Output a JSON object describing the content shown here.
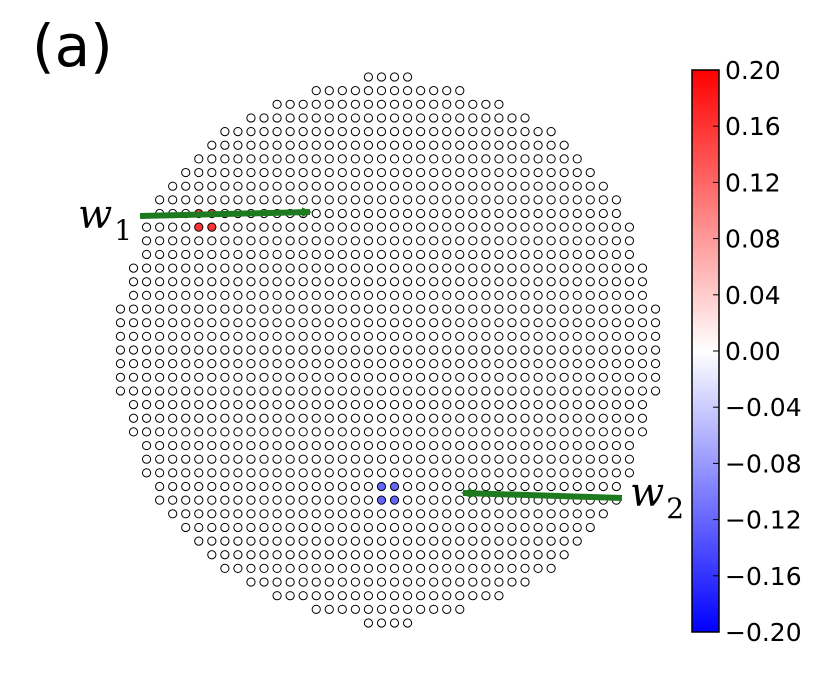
{
  "panel_label": "(a)",
  "annotations": {
    "w1": {
      "base": "w",
      "sub": "1"
    },
    "w2": {
      "base": "w",
      "sub": "2"
    },
    "arrow_color": "#1e7a1e"
  },
  "colorbar": {
    "min": -0.2,
    "max": 0.2,
    "colormap": "bwr",
    "colors": {
      "low": "#0000ff",
      "mid": "#ffffff",
      "high": "#ff0000"
    },
    "ticks": [
      "0.20",
      "0.16",
      "0.12",
      "0.08",
      "0.04",
      "0.00",
      "−0.04",
      "−0.08",
      "−0.12",
      "−0.16",
      "−0.20"
    ]
  },
  "chart_data": {
    "type": "scatter",
    "description_type": "circular lattice of sites colored by value",
    "lattice": {
      "rows": 41,
      "center_row": 20,
      "row_site_counts": [
        4,
        12,
        18,
        22,
        26,
        28,
        30,
        32,
        34,
        36,
        36,
        38,
        38,
        38,
        40,
        40,
        40,
        42,
        42,
        42,
        42,
        42,
        42,
        42,
        40,
        40,
        40,
        38,
        38,
        38,
        36,
        36,
        34,
        32,
        30,
        28,
        26,
        22,
        18,
        12,
        4
      ],
      "default_value": 0.0,
      "grid": false
    },
    "highlighted_sites": [
      {
        "group": "w1",
        "row": 10,
        "col_offset": -15,
        "value": 0.16
      },
      {
        "group": "w1",
        "row": 10,
        "col_offset": -14,
        "value": 0.16
      },
      {
        "group": "w1",
        "row": 11,
        "col_offset": -15,
        "value": 0.16
      },
      {
        "group": "w1",
        "row": 11,
        "col_offset": -14,
        "value": 0.16
      },
      {
        "group": "w2",
        "row": 30,
        "col_offset": -1,
        "value": -0.12
      },
      {
        "group": "w2",
        "row": 30,
        "col_offset": 0,
        "value": -0.12
      },
      {
        "group": "w2",
        "row": 31,
        "col_offset": -1,
        "value": -0.12
      },
      {
        "group": "w2",
        "row": 31,
        "col_offset": 0,
        "value": -0.12
      }
    ],
    "colorbar_range": [
      -0.2,
      0.2
    ]
  }
}
